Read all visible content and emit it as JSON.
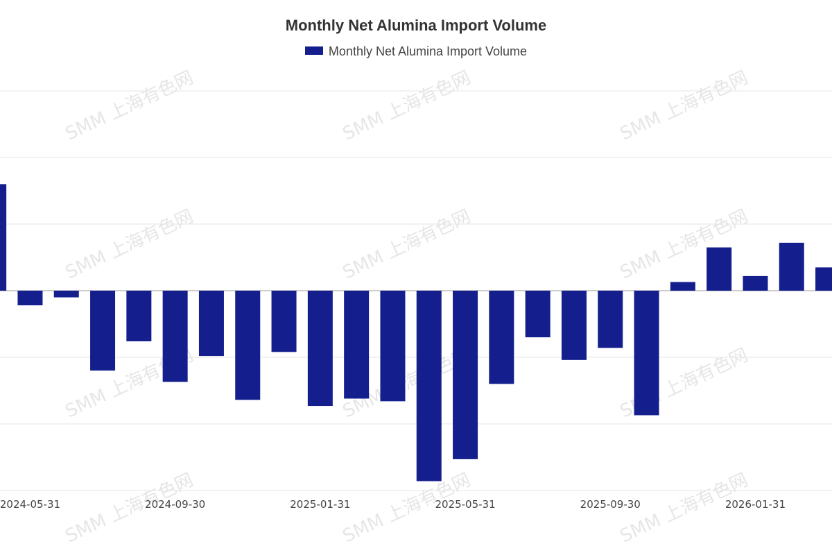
{
  "chart_data": {
    "type": "bar",
    "title": "Monthly Net Alumina Import Volume",
    "series": [
      {
        "name": "Monthly Net Alumina Import Volume",
        "color": "#141e8c",
        "values": [
          16,
          -2.2,
          -1,
          -12,
          -7.6,
          -13.7,
          -9.8,
          -16.4,
          -9.2,
          -17.3,
          -16.2,
          -16.6,
          -28.6,
          -25.3,
          -14,
          -7,
          -10.4,
          -8.6,
          -18.7,
          1.3,
          6.5,
          2.2,
          7.2,
          3.5
        ]
      }
    ],
    "categories": [
      "2024-04-30",
      "2024-05-31",
      "2024-06-30",
      "2024-07-31",
      "2024-08-31",
      "2024-09-30",
      "2024-10-31",
      "2024-11-30",
      "2024-12-31",
      "2025-01-31",
      "2025-02-28",
      "2025-03-31",
      "2025-04-30",
      "2025-05-31",
      "2025-06-30",
      "2025-07-31",
      "2025-08-31",
      "2025-09-30",
      "2025-10-31",
      "2025-11-30",
      "2025-12-31",
      "2026-01-31",
      "2026-02-28",
      "2026-03-31"
    ],
    "x_tick_labels": [
      "2024-05-31",
      "2024-09-30",
      "2025-01-31",
      "2025-05-31",
      "2025-09-30",
      "2026-01-31"
    ],
    "ylim": [
      -30,
      30
    ],
    "y_gridlines": [
      -30,
      -20,
      -10,
      0,
      10,
      20,
      30
    ],
    "grid": true,
    "legend": "top-center"
  },
  "watermark": "SMM 上海有色网"
}
